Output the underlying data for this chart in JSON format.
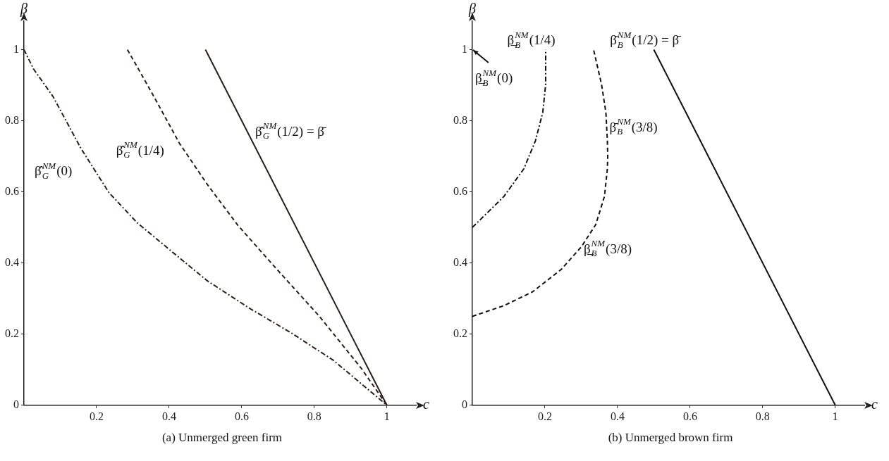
{
  "chart_data": [
    {
      "type": "line",
      "title": "(a) Unmerged green firm",
      "xlabel": "c",
      "ylabel": "β",
      "xlim": [
        0,
        1.08
      ],
      "ylim": [
        0,
        1.08
      ],
      "xticks": [
        0.2,
        0.4,
        0.6,
        0.8,
        1
      ],
      "yticks": [
        0,
        0.2,
        0.4,
        0.6,
        0.8,
        1
      ],
      "grid": false,
      "legend": false,
      "marker": "none",
      "series": [
        {
          "color": "#2a1e18",
          "line_style": "dotted",
          "x": [
            0,
            0.026,
            0.08,
            0.157,
            0.234,
            0.312,
            0.404,
            0.505,
            0.621,
            0.737,
            0.853,
            1
          ],
          "values": [
            1,
            0.946,
            0.868,
            0.722,
            0.598,
            0.513,
            0.435,
            0.35,
            0.273,
            0.203,
            0.126,
            0
          ]
        },
        {
          "color": "#2a1e18",
          "line_style": "dashed",
          "x": [
            0.285,
            0.358,
            0.428,
            0.505,
            0.59,
            0.698,
            0.814,
            0.93,
            1
          ],
          "values": [
            1,
            0.868,
            0.737,
            0.621,
            0.505,
            0.381,
            0.25,
            0.103,
            0
          ]
        },
        {
          "color": "#2a1e18",
          "line_style": "solid",
          "x": [
            0.5,
            1
          ],
          "values": [
            1,
            0
          ]
        }
      ],
      "annotations": [
        "β̂$_{G}$$^{NM}$(0)",
        "β̂$_{G}$$^{NM}$(1/4)",
        "β̂$_{G}$$^{NM}$(1/2) = β̄"
      ]
    },
    {
      "type": "line",
      "title": "(b) Unmerged brown firm",
      "xlabel": "c",
      "ylabel": "β",
      "xlim": [
        0,
        1.08
      ],
      "ylim": [
        0,
        1.08
      ],
      "xticks": [
        0.2,
        0.4,
        0.6,
        0.8,
        1
      ],
      "yticks": [
        0,
        0.2,
        0.4,
        0.6,
        0.8,
        1
      ],
      "grid": false,
      "legend": false,
      "marker": "none",
      "series": [
        {
          "color": "#111111",
          "line_style": "dotted",
          "x": [
            0,
            0.087,
            0.142,
            0.174,
            0.194,
            0.202,
            0.202
          ],
          "values": [
            0.5,
            0.587,
            0.665,
            0.744,
            0.823,
            0.902,
            1
          ]
        },
        {
          "color": "#111111",
          "line_style": "dashed",
          "x": [
            0,
            0.087,
            0.166,
            0.245,
            0.3,
            0.34,
            0.364,
            0.372,
            0.373,
            0.372,
            0.368,
            0.356,
            0.334
          ],
          "values": [
            0.25,
            0.28,
            0.319,
            0.382,
            0.445,
            0.508,
            0.587,
            0.665,
            0.7,
            0.744,
            0.823,
            0.902,
            1
          ]
        },
        {
          "color": "#111111",
          "line_style": "solid",
          "x": [
            0.5,
            1
          ],
          "values": [
            1,
            0
          ]
        }
      ],
      "annotations": [
        "β̲$_{B}$$^{NM}$(1/4)",
        "β̄$_{B}$$^{NM}$(1/2) = β̄",
        "β̲$_{B}$$^{NM}$(0)",
        "β̄$_{B}$$^{NM}$(3/8)",
        "β̲$_{B}$$^{NM}$(3/8)"
      ]
    }
  ]
}
